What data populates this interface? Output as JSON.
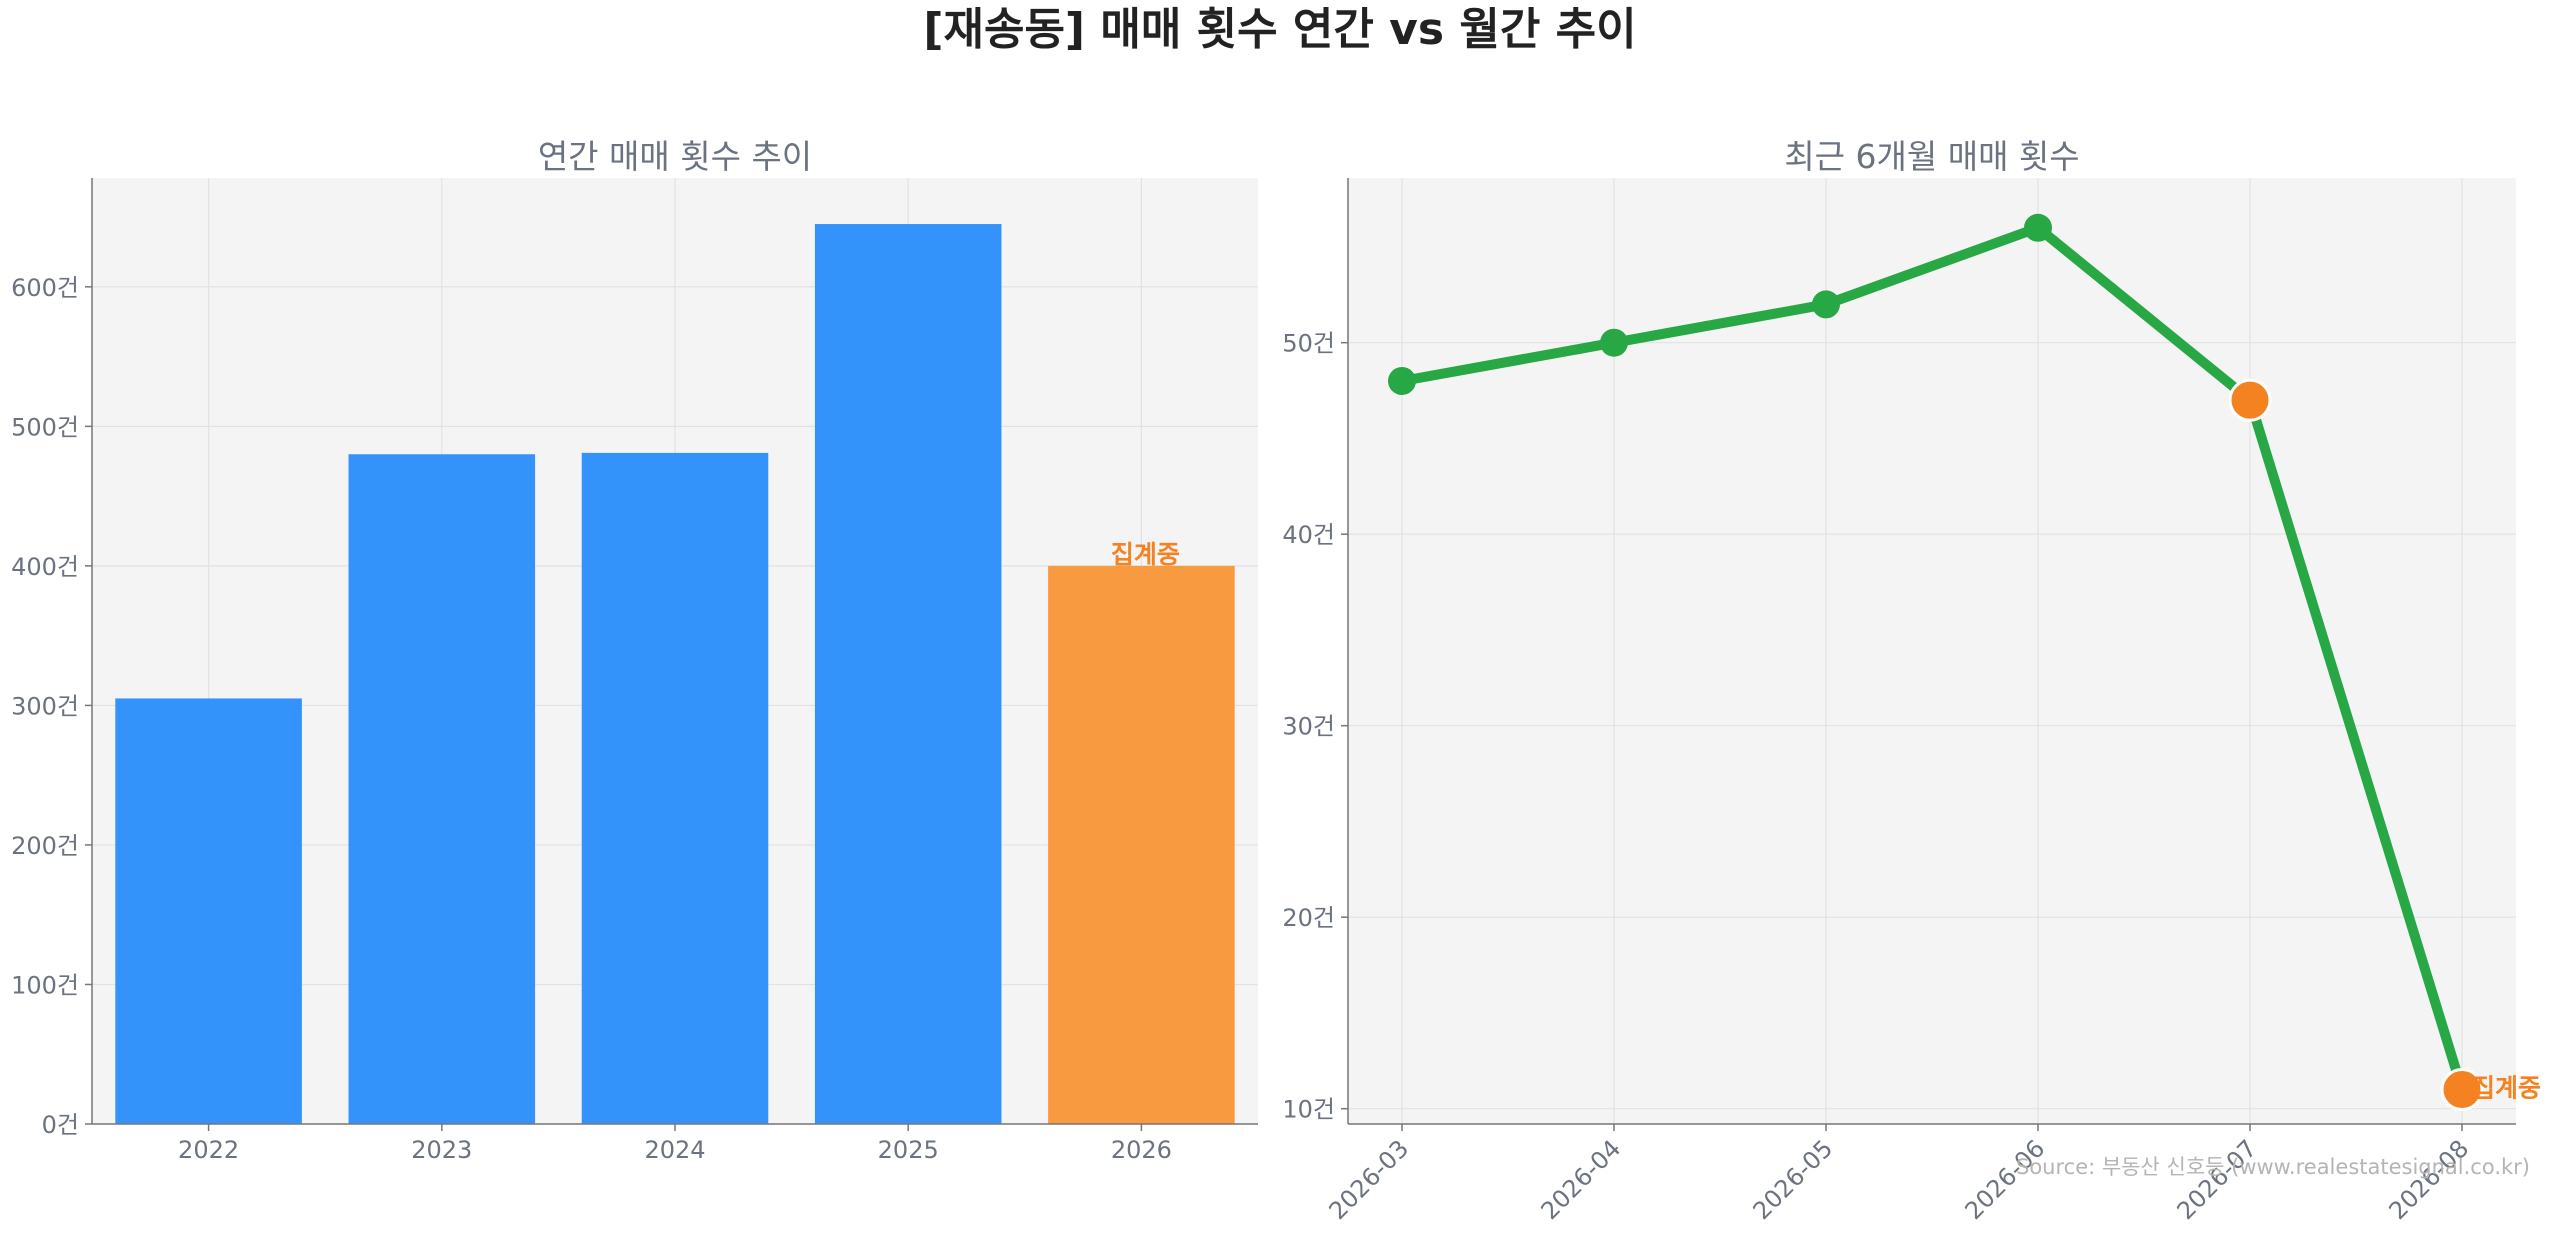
{
  "title": "[재송동] 매매 횟수 연간 vs 월간 추이",
  "source": "Source: 부동산 신호등 (www.realestatesignal.co.kr)",
  "colors": {
    "bar": "#3393fb",
    "bar_partial": "#f89a40",
    "line": "#28a745",
    "partial_marker": "#f58220",
    "note": "#f58220"
  },
  "chart_data": [
    {
      "type": "bar",
      "title": "연간 매매 횟수 추이",
      "categories": [
        "2022",
        "2023",
        "2024",
        "2025",
        "2026"
      ],
      "values": [
        305,
        480,
        481,
        645,
        400
      ],
      "partial_index": 4,
      "partial_label": "집계중",
      "ylim": [
        0,
        678
      ],
      "yticks": [
        0,
        100,
        200,
        300,
        400,
        500,
        600
      ],
      "ytick_labels": [
        "0건",
        "100건",
        "200건",
        "300건",
        "400건",
        "500건",
        "600건"
      ],
      "grid": true,
      "xlabel": "",
      "ylabel": ""
    },
    {
      "type": "line",
      "title": "최근 6개월 매매 횟수",
      "x": [
        "2026-03",
        "2026-04",
        "2026-05",
        "2026-06",
        "2026-07",
        "2026-08"
      ],
      "values": [
        48,
        50,
        52,
        56,
        47,
        11
      ],
      "partial_indices": [
        4,
        5
      ],
      "partial_label": "집계중",
      "ylim": [
        9.2,
        58.6
      ],
      "yticks": [
        10,
        20,
        30,
        40,
        50
      ],
      "ytick_labels": [
        "10건",
        "20건",
        "30건",
        "40건",
        "50건"
      ],
      "grid": true,
      "xlabel": "",
      "ylabel": ""
    }
  ]
}
